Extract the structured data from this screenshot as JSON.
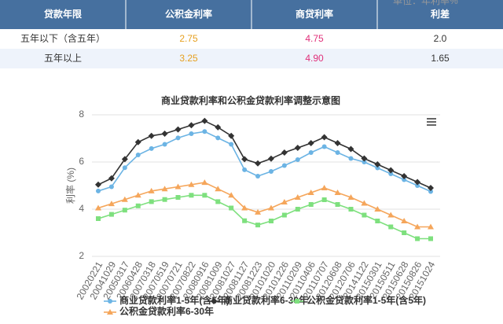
{
  "note": "单位：年利率%",
  "table": {
    "header": [
      "贷款年限",
      "公积金利率",
      "商贷利率",
      "利差"
    ],
    "rows": [
      [
        "五年以下（含五年）",
        "2.75",
        "4.75",
        "2.0"
      ],
      [
        "五年以上",
        "3.25",
        "4.90",
        "1.65"
      ]
    ]
  },
  "chart_data": {
    "type": "line",
    "title": "商业贷款利率和公积金贷款利率调整示意图",
    "y_label": "利率 (%)",
    "categories": [
      "20020221",
      "20041029",
      "20050317",
      "20060428",
      "20070318",
      "20070519",
      "20070721",
      "20070822",
      "20080916",
      "20081009",
      "20081027",
      "20081127",
      "20081223",
      "20101020",
      "20101226",
      "20110209",
      "20110406",
      "20110707",
      "20120608",
      "20120706",
      "20141122",
      "20150301",
      "20150511",
      "20150628",
      "20150826",
      "20151024"
    ],
    "series": [
      {
        "name": "商业贷款利率1-5年(含5年)",
        "color": "#6cb4e4",
        "marker": "circle",
        "values": [
          4.77,
          4.95,
          5.76,
          6.3,
          6.57,
          6.75,
          7.02,
          7.2,
          7.29,
          7.02,
          6.75,
          5.67,
          5.4,
          5.6,
          5.85,
          6.1,
          6.4,
          6.65,
          6.4,
          6.15,
          6.0,
          5.75,
          5.5,
          5.25,
          5.0,
          4.75
        ]
      },
      {
        "name": "商业贷款利率6-30年",
        "color": "#333333",
        "marker": "diamond",
        "values": [
          5.04,
          5.31,
          6.12,
          6.84,
          7.11,
          7.2,
          7.38,
          7.56,
          7.74,
          7.47,
          7.11,
          6.12,
          5.94,
          6.14,
          6.4,
          6.6,
          6.8,
          7.05,
          6.8,
          6.55,
          6.15,
          5.9,
          5.65,
          5.4,
          5.15,
          4.9
        ]
      },
      {
        "name": "公积金贷款利率1-5年(含5年)",
        "color": "#7ee07e",
        "marker": "square",
        "values": [
          3.6,
          3.78,
          3.96,
          4.14,
          4.32,
          4.41,
          4.5,
          4.59,
          4.59,
          4.32,
          4.05,
          3.51,
          3.33,
          3.5,
          3.75,
          4.0,
          4.2,
          4.4,
          4.2,
          4.0,
          3.75,
          3.5,
          3.25,
          3.0,
          2.75,
          2.75
        ]
      },
      {
        "name": "公积金贷款利率6-30年",
        "color": "#f5a65b",
        "marker": "triangle",
        "values": [
          4.05,
          4.23,
          4.41,
          4.59,
          4.77,
          4.86,
          4.95,
          5.04,
          5.13,
          4.86,
          4.59,
          4.05,
          3.87,
          4.05,
          4.3,
          4.5,
          4.7,
          4.9,
          4.7,
          4.5,
          4.25,
          4.0,
          3.75,
          3.5,
          3.25,
          3.25
        ]
      }
    ],
    "ylim": [
      2,
      8
    ],
    "yticks": [
      2,
      4,
      6,
      8
    ],
    "grid": true
  }
}
